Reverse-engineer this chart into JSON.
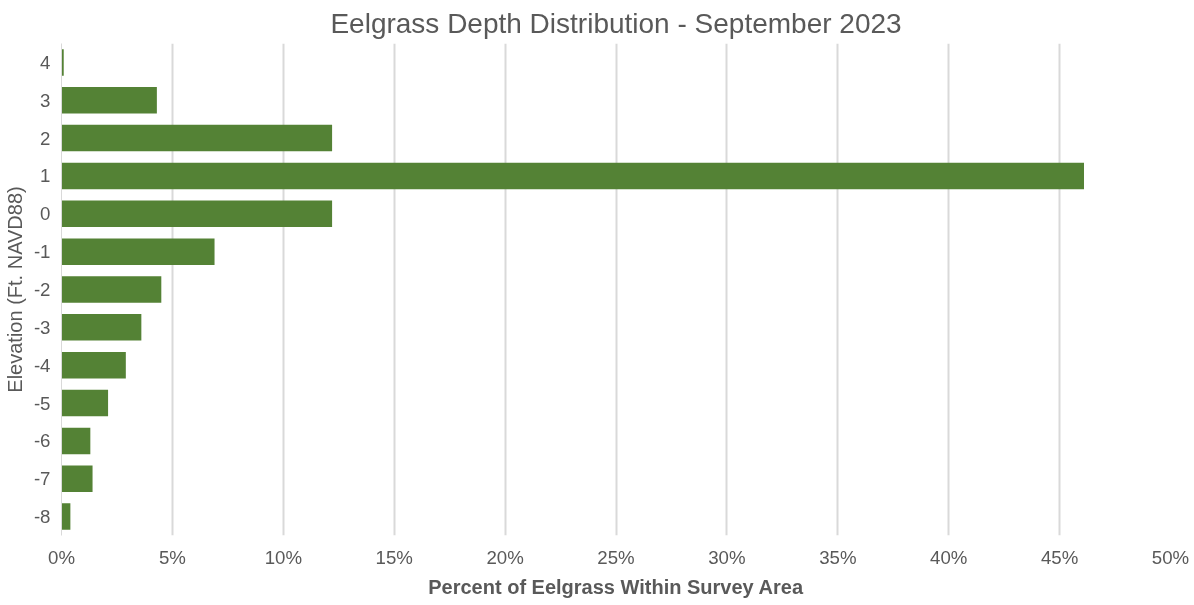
{
  "chart_data": {
    "type": "bar",
    "orientation": "horizontal",
    "title": "Eelgrass Depth Distribution - September 2023",
    "xlabel": "Percent of Eelgrass Within Survey Area",
    "ylabel": "Elevation (Ft. NAVD88)",
    "categories": [
      "4",
      "3",
      "2",
      "1",
      "0",
      "-1",
      "-2",
      "-3",
      "-4",
      "-5",
      "-6",
      "-7",
      "-8"
    ],
    "values": [
      0.1,
      4.3,
      12.2,
      46.1,
      12.2,
      6.9,
      4.5,
      3.6,
      2.9,
      2.1,
      1.3,
      1.4,
      0.4
    ],
    "color": "#548235",
    "xlim": [
      0,
      50
    ],
    "xticks": [
      {
        "value": 0,
        "label": "0%"
      },
      {
        "value": 5,
        "label": "5%"
      },
      {
        "value": 10,
        "label": "10%"
      },
      {
        "value": 15,
        "label": "15%"
      },
      {
        "value": 20,
        "label": "20%"
      },
      {
        "value": 25,
        "label": "25%"
      },
      {
        "value": 30,
        "label": "30%"
      },
      {
        "value": 35,
        "label": "35%"
      },
      {
        "value": 40,
        "label": "40%"
      },
      {
        "value": 45,
        "label": "45%"
      },
      {
        "value": 50,
        "label": "50%"
      }
    ],
    "grid": "x"
  }
}
